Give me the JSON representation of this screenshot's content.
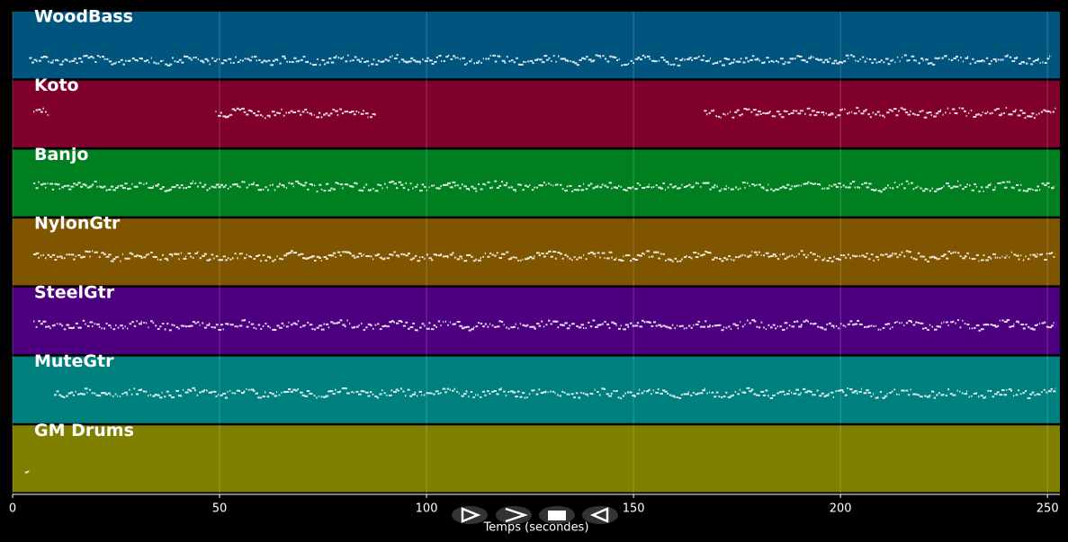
{
  "chart_data": {
    "type": "pianoroll",
    "x_label": "Temps (secondes)",
    "xlim": [
      0,
      253
    ],
    "xticks": [
      0,
      50,
      100,
      150,
      200,
      250
    ],
    "grid": true,
    "tracks": [
      {
        "name": "WoodBass",
        "color": "#00557f",
        "segments": [
          [
            4,
            251
          ]
        ]
      },
      {
        "name": "Koto",
        "color": "#7f002a",
        "segments": [
          [
            5,
            9
          ],
          [
            49,
            88
          ],
          [
            167,
            252
          ]
        ]
      },
      {
        "name": "Banjo",
        "color": "#007f20",
        "segments": [
          [
            5,
            252
          ]
        ]
      },
      {
        "name": "NylonGtr",
        "color": "#7f5500",
        "segments": [
          [
            5,
            252
          ]
        ]
      },
      {
        "name": "SteelGtr",
        "color": "#4c007f",
        "segments": [
          [
            5,
            252
          ]
        ]
      },
      {
        "name": "MuteGtr",
        "color": "#007f7f",
        "segments": [
          [
            10,
            252
          ]
        ]
      },
      {
        "name": "GM Drums",
        "color": "#7f7f00",
        "segments": [
          [
            3,
            4
          ]
        ]
      }
    ]
  }
}
